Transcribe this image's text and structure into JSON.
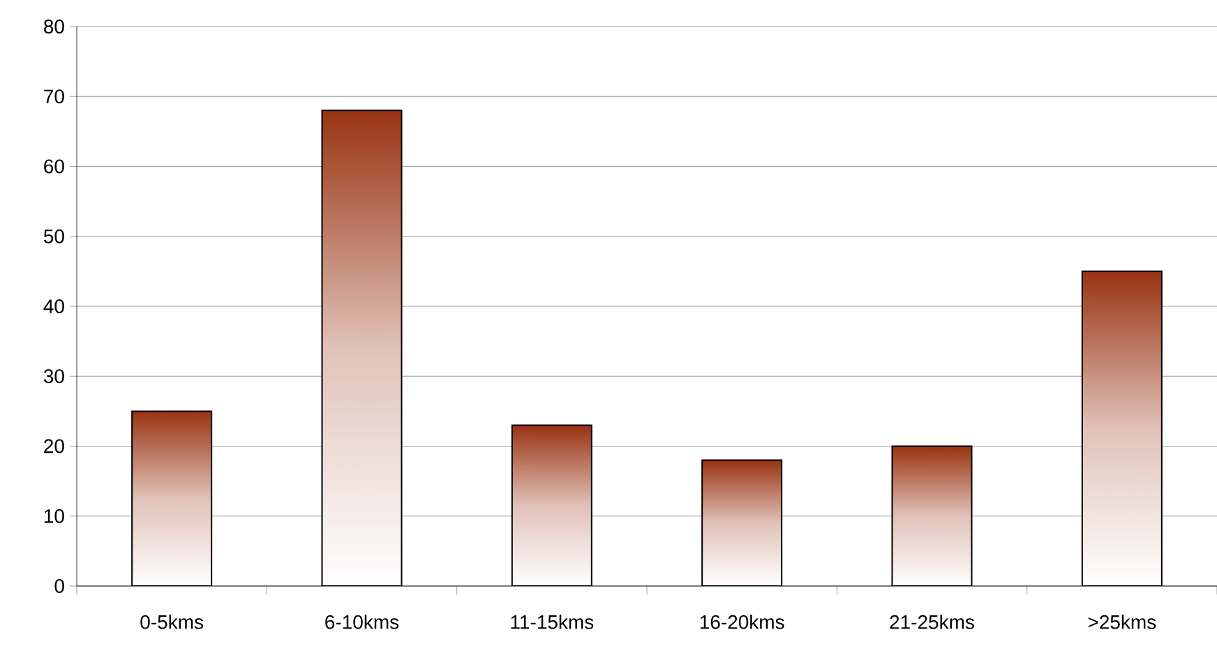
{
  "chart_data": {
    "type": "bar",
    "categories": [
      "0-5kms",
      "6-10kms",
      "11-15kms",
      "16-20kms",
      "21-25kms",
      ">25kms"
    ],
    "values": [
      25,
      68,
      23,
      18,
      20,
      45
    ],
    "color": "#993311",
    "ylim": [
      0,
      80
    ],
    "yticks": [
      0,
      10,
      20,
      30,
      40,
      50,
      60,
      70,
      80
    ],
    "grid": "y"
  }
}
